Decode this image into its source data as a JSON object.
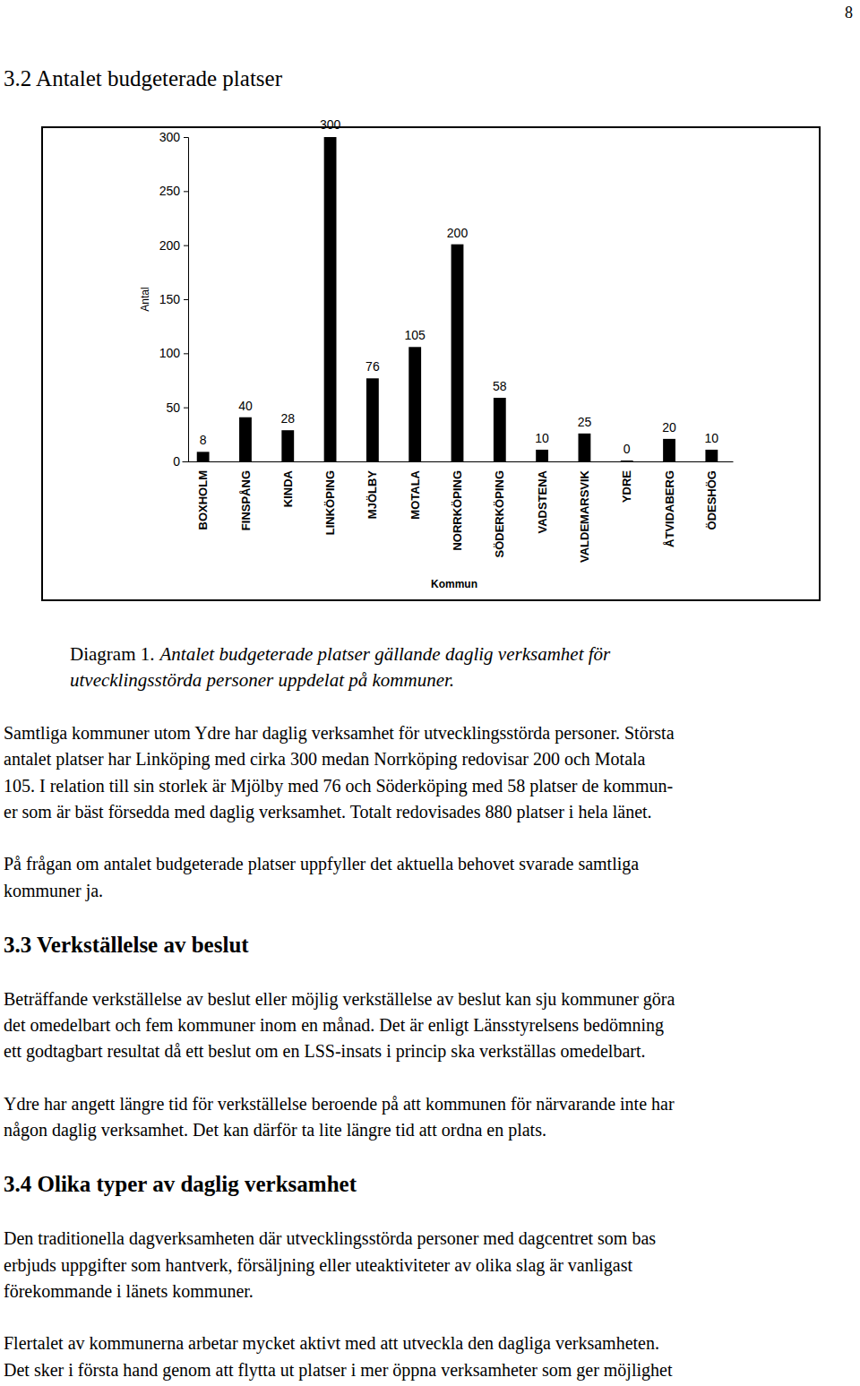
{
  "page_number": "8",
  "heading": "3.2 Antalet budgeterade platser",
  "chart_data": {
    "type": "bar",
    "categories": [
      "BOXHOLM",
      "FINSPÅNG",
      "KINDA",
      "LINKÖPING",
      "MJÖLBY",
      "MOTALA",
      "NORRKÖPING",
      "SÖDERKÖPING",
      "VADSTENA",
      "VALDEMARSVIK",
      "YDRE",
      "ÅTVIDABERG",
      "ÖDESHÖG"
    ],
    "values": [
      8,
      40,
      28,
      300,
      76,
      105,
      200,
      58,
      10,
      25,
      0,
      20,
      10
    ],
    "color": "#000000",
    "x_label": "Kommun",
    "y_label": "Antal",
    "ylim": [
      0,
      300
    ],
    "yticks": [
      0,
      50,
      100,
      150,
      200,
      250,
      300
    ],
    "data_labels": true
  },
  "caption": {
    "label": "Diagram 1.",
    "lines": [
      "Antalet budgeterade platser gällande daglig verksamhet för",
      "utvecklingsstörda personer uppdelat på kommuner."
    ]
  },
  "blocks": [
    {
      "type": "paragraph",
      "lines": [
        "Samtliga kommuner utom Ydre har daglig verksamhet för utvecklingsstörda personer. Största",
        "antalet platser har Linköping med cirka 300 medan Norrköping redovisar 200 och Motala",
        "105. I relation till sin storlek är Mjölby med 76 och Söderköping med 58 platser de kommun-",
        "er som är bäst försedda med daglig verksamhet. Totalt redovisades 880 platser i hela länet."
      ]
    },
    {
      "type": "paragraph",
      "lines": [
        "På frågan om antalet budgeterade platser uppfyller det aktuella behovet svarade samtliga",
        "kommuner ja."
      ]
    },
    {
      "type": "heading",
      "text": "3.3 Verkställelse av beslut"
    },
    {
      "type": "paragraph",
      "lines": [
        "Beträffande verkställelse av beslut eller möjlig verkställelse av beslut kan sju kommuner göra",
        "det omedelbart och fem kommuner inom en månad. Det är enligt Länsstyrelsens bedömning",
        "ett godtagbart resultat då ett beslut om en LSS-insats i princip ska verkställas omedelbart."
      ]
    },
    {
      "type": "paragraph",
      "lines": [
        "Ydre har angett längre tid för verkställelse beroende på att kommunen för närvarande inte har",
        "någon daglig verksamhet. Det kan därför ta lite längre tid att ordna en plats."
      ]
    },
    {
      "type": "heading",
      "text": "3.4 Olika typer av daglig verksamhet"
    },
    {
      "type": "paragraph",
      "lines": [
        "Den traditionella dagverksamheten där utvecklingsstörda personer med dagcentret som bas",
        "erbjuds uppgifter som hantverk, försäljning eller uteaktiviteter av olika slag är vanligast",
        "förekommande i länets kommuner."
      ]
    },
    {
      "type": "paragraph",
      "lines": [
        "Flertalet av kommunerna arbetar mycket aktivt med att utveckla den dagliga verksamheten.",
        "Det sker i första hand genom att flytta ut platser i mer öppna verksamheter som ger möjlighet"
      ]
    }
  ]
}
